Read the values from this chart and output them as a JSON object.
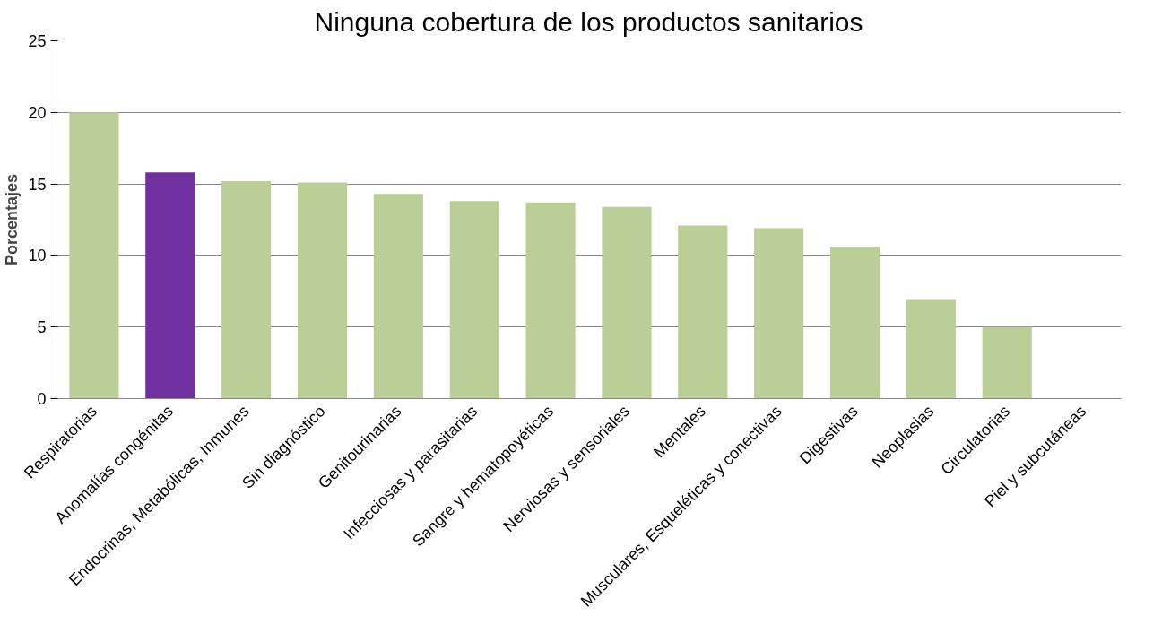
{
  "chart_data": {
    "type": "bar",
    "title": "Ninguna cobertura de los productos sanitarios",
    "ylabel": "Porcentajes",
    "categories": [
      "Respiratorias",
      "Anomalías congénitas",
      "Endocrinas, Metabólicas, Inmunes",
      "Sin diagnóstico",
      "Genitourinarias",
      "Infecciosas y parasitarias",
      "Sangre y hematopoyéticas",
      "Nerviosas y sensoriales",
      "Mentales",
      "Musculares, Esqueléticas y conectivas",
      "Digestivas",
      "Neoplasias",
      "Circulatorias",
      "Piel y subcutáneas"
    ],
    "values": [
      20.0,
      15.8,
      15.2,
      15.1,
      14.3,
      13.8,
      13.7,
      13.4,
      12.1,
      11.9,
      10.6,
      6.9,
      5.0,
      0
    ],
    "colors": [
      "#b9cf96",
      "#7030a0",
      "#b9cf96",
      "#b9cf96",
      "#b9cf96",
      "#b9cf96",
      "#b9cf96",
      "#b9cf96",
      "#b9cf96",
      "#b9cf96",
      "#b9cf96",
      "#b9cf96",
      "#b9cf96",
      "#b9cf96"
    ],
    "ylim": [
      0,
      25
    ],
    "yticks": [
      0,
      5,
      10,
      15,
      20,
      25
    ],
    "grid": "y"
  }
}
